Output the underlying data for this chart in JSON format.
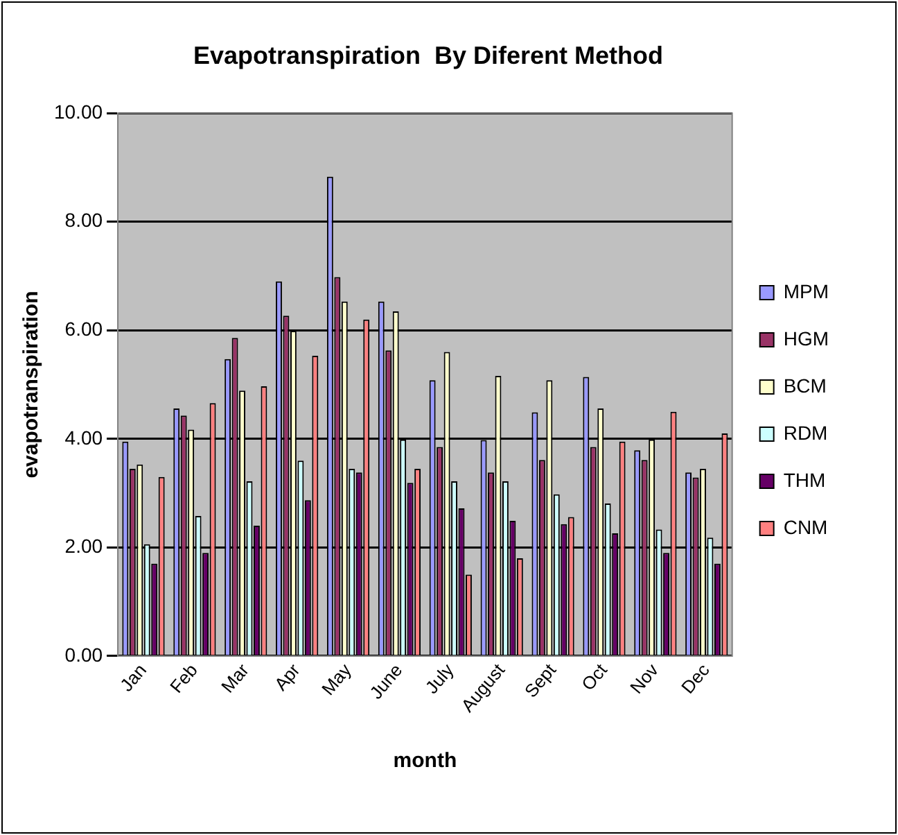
{
  "chart_data": {
    "type": "bar",
    "title": "Evapotranspiration  By Diferent Method",
    "xlabel": "month",
    "ylabel": "evapotranspiration",
    "categories": [
      "Jan",
      "Feb",
      "Mar",
      "Apr",
      "May",
      "June",
      "July",
      "August",
      "Sept",
      "Oct",
      "Nov",
      "Dec"
    ],
    "series": [
      {
        "name": "MPM",
        "color": "#9999ff",
        "values": [
          3.95,
          4.56,
          5.47,
          6.9,
          8.83,
          6.53,
          5.08,
          3.98,
          4.49,
          5.14,
          3.79,
          3.38
        ]
      },
      {
        "name": "HGM",
        "color": "#993366",
        "values": [
          3.45,
          4.43,
          5.86,
          6.27,
          6.98,
          5.63,
          3.85,
          3.38,
          3.61,
          3.85,
          3.61,
          3.29
        ]
      },
      {
        "name": "BCM",
        "color": "#ffffcc",
        "values": [
          3.53,
          4.17,
          4.89,
          5.99,
          6.53,
          6.35,
          5.6,
          5.16,
          5.08,
          4.56,
          3.99,
          3.45
        ]
      },
      {
        "name": "RDM",
        "color": "#ccffff",
        "values": [
          2.06,
          2.58,
          3.22,
          3.6,
          3.45,
          3.99,
          3.22,
          3.22,
          2.98,
          2.81,
          2.33,
          2.18
        ]
      },
      {
        "name": "THM",
        "color": "#660066",
        "values": [
          1.7,
          1.9,
          2.4,
          2.87,
          3.38,
          3.19,
          2.72,
          2.49,
          2.43,
          2.26,
          1.9,
          1.7
        ]
      },
      {
        "name": "CNM",
        "color": "#ff8080",
        "values": [
          3.3,
          4.66,
          4.97,
          5.53,
          6.2,
          3.45,
          1.5,
          1.8,
          2.56,
          3.95,
          4.5,
          4.1
        ]
      }
    ],
    "ylim": [
      0,
      10
    ],
    "yticks": [
      {
        "value": 0,
        "label": "0.00"
      },
      {
        "value": 2,
        "label": "2.00"
      },
      {
        "value": 4,
        "label": "4.00"
      },
      {
        "value": 6,
        "label": "6.00"
      },
      {
        "value": 8,
        "label": "8.00"
      },
      {
        "value": 10,
        "label": "10.00"
      }
    ],
    "grid": "y",
    "legend": "right"
  }
}
